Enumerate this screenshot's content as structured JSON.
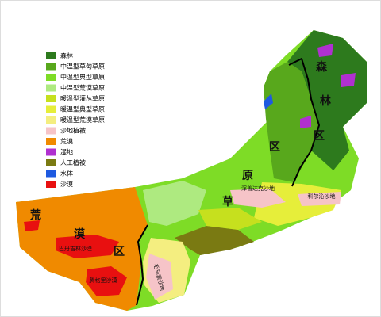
{
  "legend": [
    {
      "label": "森林",
      "color": "#2d7a1d"
    },
    {
      "label": "中温型草甸草原",
      "color": "#58a81c"
    },
    {
      "label": "中温型典型草原",
      "color": "#7edc26"
    },
    {
      "label": "中温型荒漠草原",
      "color": "#aeea80"
    },
    {
      "label": "暖温型灌丛草原",
      "color": "#c6e01e"
    },
    {
      "label": "暖温型典型草原",
      "color": "#e6ee3a"
    },
    {
      "label": "暖温型荒漠草原",
      "color": "#f4ee80"
    },
    {
      "label": "沙地植被",
      "color": "#f6c4c8"
    },
    {
      "label": "荒漠",
      "color": "#f08a00"
    },
    {
      "label": "湿地",
      "color": "#b030d0"
    },
    {
      "label": "人工植被",
      "color": "#7a7a12"
    },
    {
      "label": "水体",
      "color": "#1e5ae0"
    },
    {
      "label": "沙漠",
      "color": "#e81010"
    }
  ],
  "map_labels": [
    {
      "text": "森"
    },
    {
      "text": "林"
    },
    {
      "text": "区"
    },
    {
      "text": "草"
    },
    {
      "text": "原"
    },
    {
      "text": "区"
    },
    {
      "text": "荒"
    },
    {
      "text": "漠"
    },
    {
      "text": "区"
    }
  ],
  "place_names": [
    {
      "text": "巴丹吉林沙漠"
    },
    {
      "text": "腾格里沙漠"
    },
    {
      "text": "毛乌素沙地"
    },
    {
      "text": "浑善达克沙地"
    },
    {
      "text": "科尔沁沙地"
    }
  ]
}
